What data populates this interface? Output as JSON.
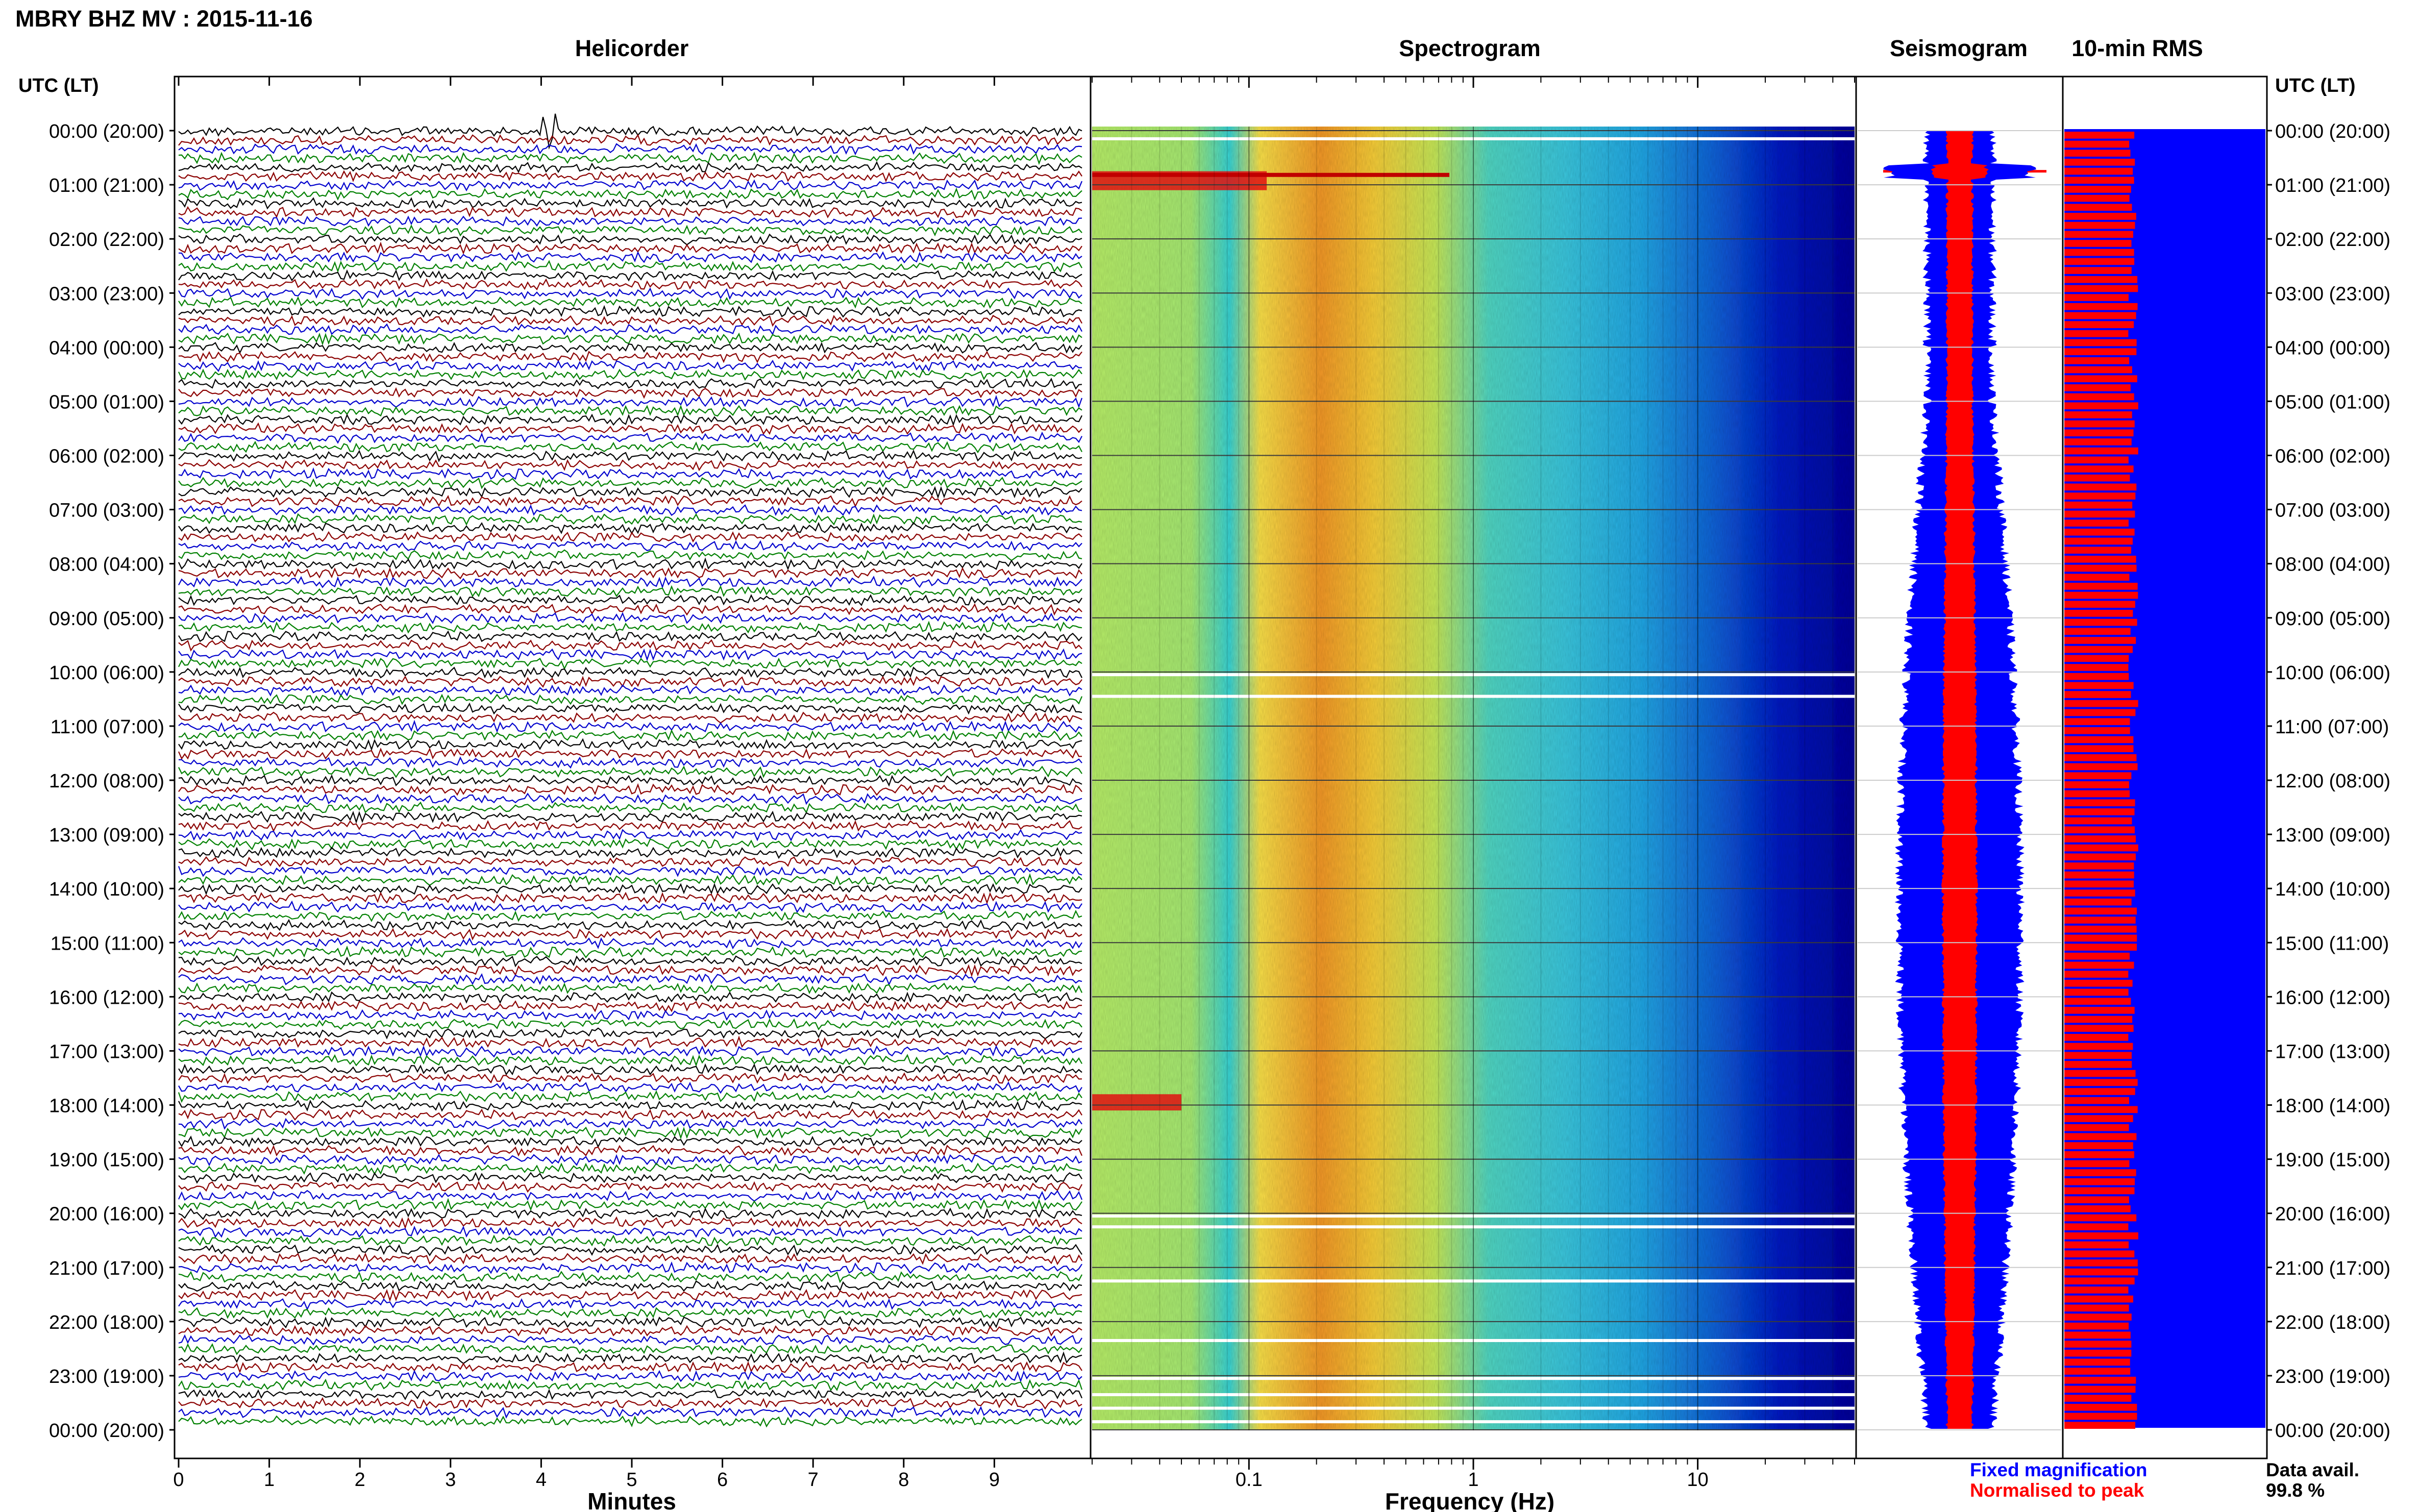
{
  "header": {
    "title": "MBRY BHZ MV : 2015-11-16"
  },
  "panels": {
    "helicorder": "Helicorder",
    "spectrogram": "Spectrogram",
    "seismogram": "Seismogram",
    "rms": "10-min RMS"
  },
  "axis": {
    "left_header": "UTC (LT)",
    "right_header": "UTC (LT)",
    "minutes_label": "Minutes",
    "frequency_label": "Frequency (Hz)"
  },
  "legend": {
    "fixed": "Fixed magnification",
    "normalised": "Normalised to peak",
    "data_avail_label": "Data avail.",
    "data_avail_value": "99.8 %"
  },
  "colors": {
    "fixed": "#0000ff",
    "normalised": "#ff0000",
    "trace_cycle": [
      "#000000",
      "#8b0000",
      "#0000cd",
      "#008000"
    ]
  },
  "chart_data": {
    "type": "heatmap",
    "time_ticks": [
      "00:00 (20:00)",
      "01:00 (21:00)",
      "02:00 (22:00)",
      "03:00 (23:00)",
      "04:00 (00:00)",
      "05:00 (01:00)",
      "06:00 (02:00)",
      "07:00 (03:00)",
      "08:00 (04:00)",
      "09:00 (05:00)",
      "10:00 (06:00)",
      "11:00 (07:00)",
      "12:00 (08:00)",
      "13:00 (09:00)",
      "14:00 (10:00)",
      "15:00 (11:00)",
      "16:00 (12:00)",
      "17:00 (13:00)",
      "18:00 (14:00)",
      "19:00 (15:00)",
      "20:00 (16:00)",
      "21:00 (17:00)",
      "22:00 (18:00)",
      "23:00 (19:00)",
      "00:00 (20:00)"
    ],
    "minutes_ticks": [
      "0",
      "1",
      "2",
      "3",
      "4",
      "5",
      "6",
      "7",
      "8",
      "9"
    ],
    "minutes_range": [
      0,
      10
    ],
    "frequency_ticks": [
      "0.1",
      "1",
      "10"
    ],
    "frequency_range": [
      0.02,
      50
    ],
    "frequency_scale": "log",
    "time_range_hours": [
      0,
      24
    ],
    "spectrogram_events": [
      {
        "start_hour": 0.75,
        "end_hour": 1.1,
        "fmin": 0.02,
        "fmax": 0.12
      },
      {
        "start_hour": 17.8,
        "end_hour": 18.1,
        "fmin": 0.02,
        "fmax": 0.05
      }
    ],
    "gaps_hours": [
      0.15,
      10.05,
      10.45,
      20.05,
      20.25,
      21.25,
      22.35,
      23.05,
      23.35,
      23.6,
      23.85
    ],
    "rms_spike_hour": 0.75
  }
}
